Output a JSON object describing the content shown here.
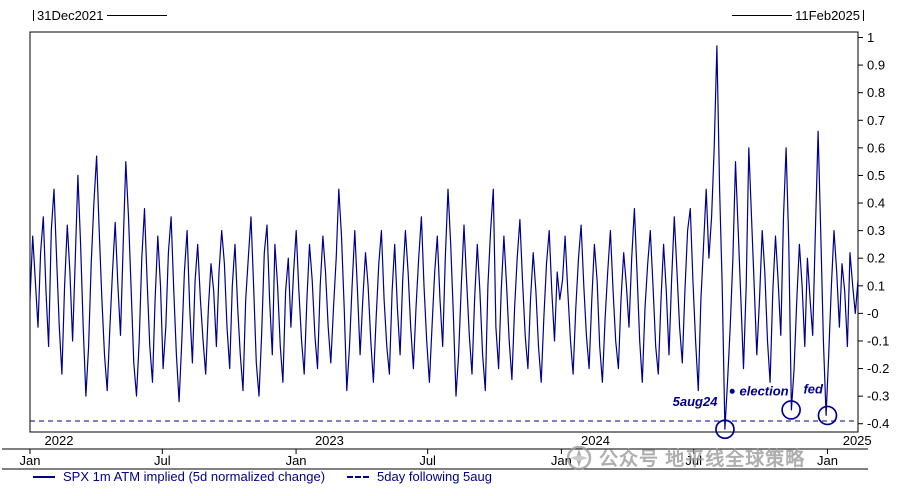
{
  "header": {
    "start_label": "31Dec2021",
    "end_label": "11Feb2025"
  },
  "watermark": {
    "text": "公众号 地平线全球策略"
  },
  "legend": {
    "series1": "SPX 1m ATM implied (5d normalized change)",
    "series2": "5day following 5aug"
  },
  "chart_data": {
    "type": "line",
    "title": "",
    "xlabel": "",
    "ylabel": "",
    "x_unit": "days since 31Dec2021",
    "x_start_day": 0,
    "x_end_day": 1139,
    "ylim": [
      -0.43,
      1.02
    ],
    "grid": false,
    "legend_position": "bottom",
    "line_color": "#00008B",
    "x_ticks": [
      {
        "day": 0,
        "label": "Jan"
      },
      {
        "day": 182,
        "label": "Jul"
      },
      {
        "day": 366,
        "label": "Jan"
      },
      {
        "day": 547,
        "label": "Jul"
      },
      {
        "day": 731,
        "label": "Jan"
      },
      {
        "day": 913,
        "label": "Jul"
      },
      {
        "day": 1097,
        "label": "Jan"
      }
    ],
    "year_labels": [
      {
        "day": 20,
        "label": "2022"
      },
      {
        "day": 392,
        "label": "2023"
      },
      {
        "day": 758,
        "label": "2024"
      },
      {
        "day": 1118,
        "label": "2025"
      }
    ],
    "y_ticks": [
      {
        "v": 1,
        "label": "1"
      },
      {
        "v": 0.9,
        "label": "0.9"
      },
      {
        "v": 0.8,
        "label": "0.8"
      },
      {
        "v": 0.7,
        "label": "0.7"
      },
      {
        "v": 0.6,
        "label": "0.6"
      },
      {
        "v": 0.5,
        "label": "0.5"
      },
      {
        "v": 0.4,
        "label": "0.4"
      },
      {
        "v": 0.3,
        "label": "0.3"
      },
      {
        "v": 0.2,
        "label": "0.2"
      },
      {
        "v": 0.1,
        "label": "0.1"
      },
      {
        "v": 0,
        "label": "-0"
      },
      {
        "v": -0.1,
        "label": "-0.1"
      },
      {
        "v": -0.2,
        "label": "-0.2"
      },
      {
        "v": -0.3,
        "label": "-0.3"
      },
      {
        "v": -0.4,
        "label": "-0.4"
      }
    ],
    "ref_line": {
      "value": -0.39,
      "style": "dashed",
      "label": "5day following 5aug"
    },
    "annotations": [
      {
        "label": "5aug24",
        "day": 884,
        "value": -0.335,
        "circle_day": 956,
        "circle_value": -0.42
      },
      {
        "label": "election",
        "day": 976,
        "value": -0.297,
        "circle_day": 1047,
        "circle_value": -0.35,
        "bullet_day": 966,
        "bullet_value": -0.297
      },
      {
        "label": "fed",
        "day": 1064,
        "value": -0.29,
        "circle_day": 1097,
        "circle_value": -0.37
      }
    ],
    "series": [
      {
        "name": "SPX 1m ATM implied (5d normalized change)",
        "color": "#00008B",
        "values": [
          0.05,
          0.28,
          0.12,
          -0.05,
          0.22,
          0.35,
          0.08,
          -0.12,
          0.3,
          0.45,
          0.2,
          -0.05,
          -0.22,
          0.1,
          0.32,
          0.15,
          -0.1,
          0.2,
          0.5,
          0.25,
          -0.05,
          -0.3,
          -0.12,
          0.18,
          0.4,
          0.57,
          0.3,
          0.05,
          -0.15,
          -0.28,
          -0.05,
          0.15,
          0.33,
          0.1,
          -0.08,
          0.25,
          0.55,
          0.35,
          0.08,
          -0.18,
          -0.3,
          -0.1,
          0.2,
          0.38,
          0.12,
          -0.12,
          -0.25,
          0.05,
          0.28,
          0.1,
          -0.2,
          -0.05,
          0.22,
          0.35,
          0.08,
          -0.15,
          -0.32,
          -0.1,
          0.15,
          0.3,
          0.02,
          -0.18,
          0.12,
          0.25,
          0.05,
          -0.1,
          -0.22,
          0.02,
          0.18,
          0.08,
          -0.12,
          0.15,
          0.3,
          0.18,
          -0.05,
          -0.2,
          0.1,
          0.25,
          0.02,
          -0.15,
          -0.28,
          0.05,
          0.2,
          0.35,
          0.1,
          -0.18,
          -0.3,
          -0.08,
          0.22,
          0.32,
          0.05,
          -0.15,
          0.25,
          0.1,
          -0.12,
          -0.25,
          0.08,
          0.2,
          -0.05,
          0.15,
          0.3,
          0.08,
          -0.1,
          -0.22,
          0.05,
          0.25,
          0.12,
          -0.08,
          -0.2,
          0.1,
          0.28,
          0.15,
          -0.05,
          -0.18,
          0.02,
          0.2,
          0.45,
          0.28,
          0.02,
          -0.28,
          -0.12,
          0.1,
          0.3,
          0.08,
          -0.15,
          0.05,
          0.22,
          0.1,
          -0.1,
          -0.25,
          -0.02,
          0.18,
          0.3,
          0.05,
          -0.12,
          -0.22,
          0.08,
          0.25,
          0.02,
          -0.15,
          0.12,
          0.3,
          0.15,
          -0.05,
          -0.2,
          0.02,
          0.2,
          0.35,
          0.1,
          -0.1,
          -0.25,
          -0.05,
          0.15,
          0.28,
          0.05,
          -0.12,
          0.2,
          0.45,
          0.25,
          0.0,
          -0.3,
          -0.15,
          0.1,
          0.32,
          0.12,
          -0.08,
          -0.22,
          0.05,
          0.25,
          0.08,
          -0.15,
          -0.28,
          0.1,
          0.3,
          0.45,
          -0.05,
          -0.2,
          0.08,
          0.28,
          0.1,
          -0.1,
          -0.24,
          0.02,
          0.2,
          0.34,
          0.12,
          -0.08,
          -0.2,
          0.05,
          0.22,
          0.08,
          -0.12,
          -0.25,
          -0.02,
          0.18,
          0.3,
          0.08,
          -0.1,
          0.15,
          0.05,
          0.12,
          0.28,
          0.08,
          -0.1,
          -0.22,
          0.02,
          0.2,
          0.32,
          0.1,
          -0.08,
          -0.2,
          0.05,
          0.25,
          0.12,
          -0.12,
          -0.25,
          -0.02,
          0.15,
          0.3,
          0.08,
          -0.1,
          -0.2,
          0.05,
          0.22,
          0.1,
          -0.05,
          0.2,
          0.38,
          0.15,
          -0.1,
          -0.25,
          0.02,
          0.18,
          0.3,
          0.1,
          -0.12,
          -0.22,
          0.05,
          0.25,
          0.08,
          -0.15,
          0.12,
          0.35,
          0.15,
          -0.05,
          -0.18,
          0.08,
          0.3,
          0.38,
          0.12,
          -0.1,
          -0.28,
          0.05,
          0.25,
          0.45,
          0.2,
          0.35,
          0.6,
          0.97,
          0.45,
          0.1,
          -0.42,
          -0.25,
          -0.05,
          0.2,
          0.55,
          0.3,
          0.05,
          -0.2,
          0.1,
          0.6,
          0.35,
          0.1,
          -0.15,
          0.05,
          0.3,
          0.15,
          -0.1,
          -0.25,
          0.08,
          0.28,
          0.12,
          -0.08,
          0.35,
          0.6,
          0.25,
          -0.35,
          -0.2,
          0.05,
          0.25,
          0.1,
          -0.12,
          0.2,
          0.05,
          -0.08,
          0.3,
          0.66,
          0.3,
          -0.1,
          -0.37,
          -0.15,
          0.1,
          0.3,
          0.15,
          -0.05,
          0.18,
          0.08,
          -0.12,
          0.22,
          0.1,
          0.0,
          0.12
        ]
      }
    ]
  }
}
